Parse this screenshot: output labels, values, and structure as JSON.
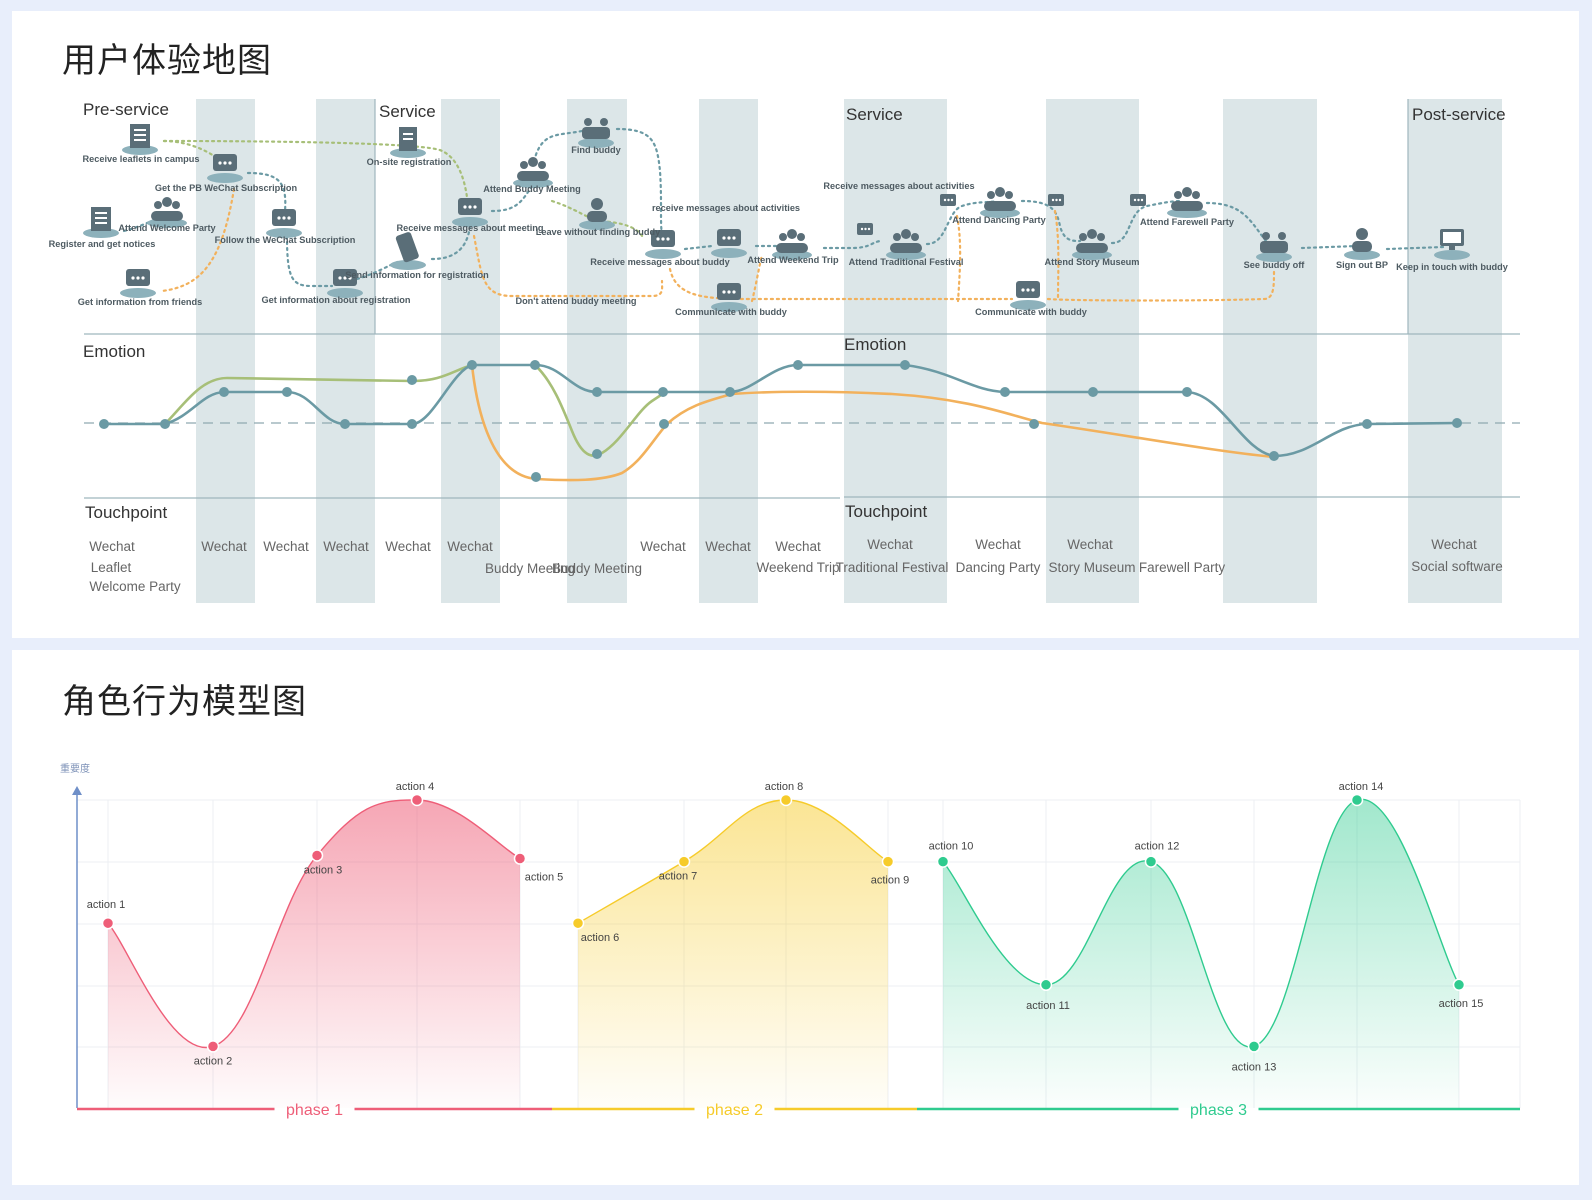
{
  "titles": {
    "journey": "用户体验地图",
    "behavior": "角色行为模型图"
  },
  "colors": {
    "band": "#dce6e8",
    "teal": "#6b9aa4",
    "green": "#a7bf78",
    "orange": "#f2b15c",
    "pink": "#ee5e78",
    "yellow": "#f6cb2a",
    "mint": "#2fcb8f",
    "icon": "#5a6e78",
    "text": "#555555"
  },
  "journey": {
    "stages": [
      "Pre-service",
      "Service",
      "Service",
      "Post-service"
    ],
    "rows": [
      "Emotion",
      "Touchpoint",
      "Emotion",
      "Touchpoint"
    ],
    "steps": [
      "Receive leaflets in campus",
      "Get the PB WeChat Subscription",
      "Attend Welcome Party",
      "Register and get notices",
      "Follow the WeChat Subscription",
      "Get information from friends",
      "Get information about registration",
      "On-site registration",
      "Send information for registration",
      "Receive messages about meeting",
      "Attend Buddy Meeting",
      "Find buddy",
      "Leave without finding buddy",
      "Don't attend buddy meeting",
      "Receive messages about buddy",
      "receive messages about activities",
      "Communicate with buddy",
      "Attend Weekend Trip",
      "Receive messages about activities",
      "Attend Traditional Festival",
      "Attend Dancing Party",
      "Attend Story Museum",
      "Communicate with buddy",
      "Attend Farewell Party",
      "See buddy off",
      "Sign out BP",
      "Keep in touch with buddy"
    ],
    "touchpoints": [
      "Wechat",
      "Leaflet",
      "Welcome Party",
      "Wechat",
      "Wechat",
      "Wechat",
      "Wechat",
      "Wechat",
      "Buddy Meeting",
      "Buddy Meeting",
      "Wechat",
      "Wechat",
      "Wechat",
      "Weekend Trip",
      "Wechat",
      "Traditional Festival",
      "Wechat",
      "Dancing Party",
      "Wechat",
      "Story Museum",
      "Farewell Party",
      "Wechat",
      "Social software"
    ]
  },
  "chart_data": {
    "type": "area",
    "ylabel": "重要度",
    "phases": [
      {
        "name": "phase 1",
        "color": "#ee5e78",
        "points": [
          {
            "label": "action 1",
            "y": 3
          },
          {
            "label": "action 2",
            "y": 1
          },
          {
            "label": "action 3",
            "y": 4.1
          },
          {
            "label": "action 4",
            "y": 5
          },
          {
            "label": "action 5",
            "y": 4.05
          }
        ]
      },
      {
        "name": "phase 2",
        "color": "#f6cb2a",
        "points": [
          {
            "label": "action 6",
            "y": 3
          },
          {
            "label": "action 7",
            "y": 4
          },
          {
            "label": "action 8",
            "y": 5
          },
          {
            "label": "action 9",
            "y": 4
          }
        ]
      },
      {
        "name": "phase 3",
        "color": "#2fcb8f",
        "points": [
          {
            "label": "action 10",
            "y": 4
          },
          {
            "label": "action 11",
            "y": 2
          },
          {
            "label": "action 12",
            "y": 4
          },
          {
            "label": "action 13",
            "y": 1
          },
          {
            "label": "action 14",
            "y": 5
          },
          {
            "label": "action 15",
            "y": 2
          }
        ]
      }
    ],
    "ylim": [
      0,
      5
    ]
  }
}
